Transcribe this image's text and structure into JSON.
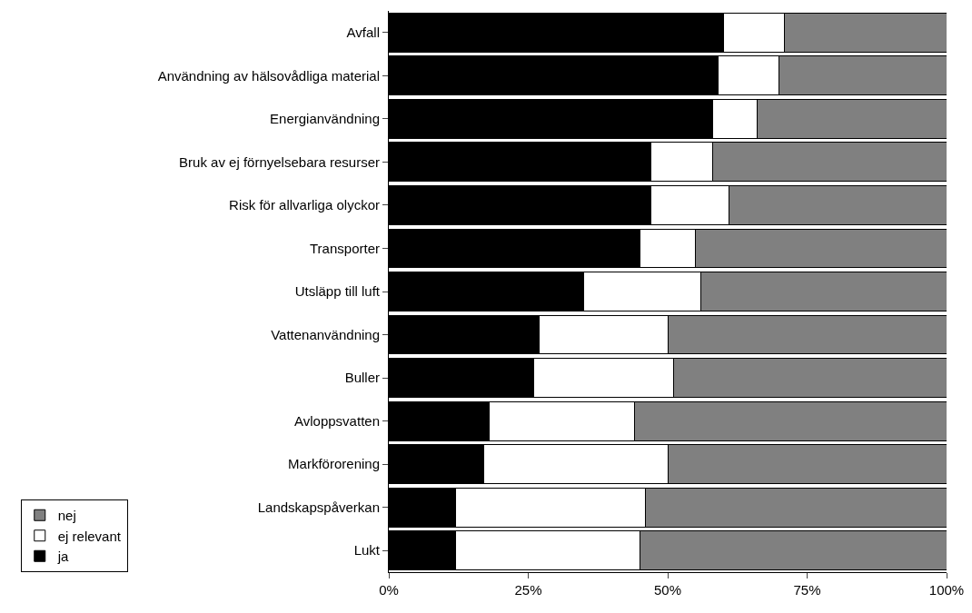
{
  "chart_data": {
    "type": "bar",
    "orientation": "horizontal",
    "stacked": true,
    "categories": [
      "Avfall",
      "Användning av hälsovådliga material",
      "Energianvändning",
      "Bruk av ej förnyelsebara resurser",
      "Risk för allvarliga olyckor",
      "Transporter",
      "Utsläpp till luft",
      "Vattenanvändning",
      "Buller",
      "Avloppsvatten",
      "Markförorening",
      "Landskapspåverkan",
      "Lukt"
    ],
    "series": [
      {
        "name": "ja",
        "color": "#000000",
        "values": [
          60,
          59,
          58,
          47,
          47,
          45,
          35,
          27,
          26,
          18,
          17,
          12,
          12
        ]
      },
      {
        "name": "ej relevant",
        "color": "#ffffff",
        "values": [
          11,
          11,
          8,
          11,
          14,
          10,
          21,
          23,
          25,
          26,
          33,
          34,
          33
        ]
      },
      {
        "name": "nej",
        "color": "#808080",
        "values": [
          29,
          30,
          34,
          42,
          39,
          45,
          44,
          50,
          49,
          56,
          50,
          54,
          55
        ]
      }
    ],
    "xlim": [
      0,
      100
    ],
    "xticks": [
      {
        "value": 0,
        "label": "0%"
      },
      {
        "value": 25,
        "label": "25%"
      },
      {
        "value": 50,
        "label": "50%"
      },
      {
        "value": 75,
        "label": "75%"
      },
      {
        "value": 100,
        "label": "100%"
      }
    ],
    "grid": false,
    "legend": "bottom left"
  }
}
